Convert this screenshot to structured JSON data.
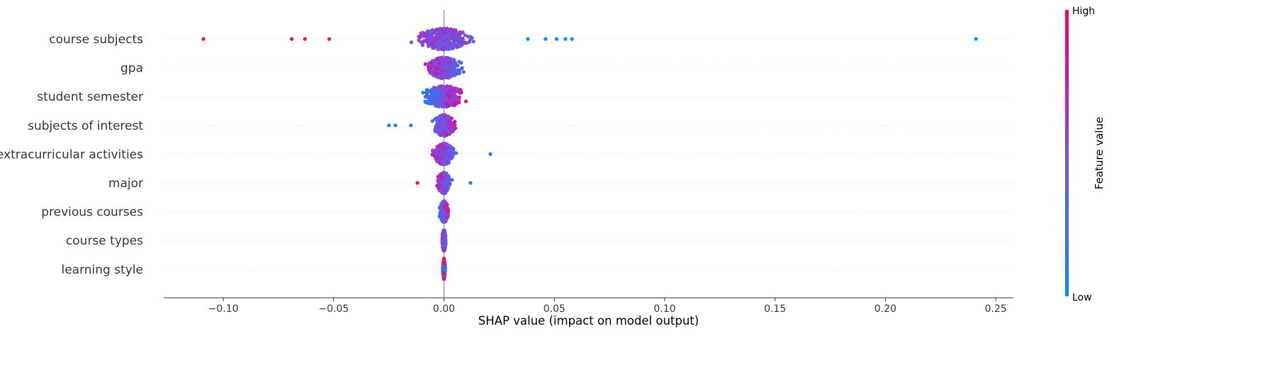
{
  "chart_data": {
    "type": "scatter",
    "subtype": "shap-beeswarm",
    "title": "",
    "xlabel": "SHAP value (impact on model output)",
    "ylabel": "",
    "xlim": [
      -0.127,
      0.258
    ],
    "xticks": [
      -0.1,
      -0.05,
      0.0,
      0.05,
      0.1,
      0.15,
      0.2,
      0.25
    ],
    "xtick_labels": [
      "−0.10",
      "−0.05",
      "0.00",
      "0.05",
      "0.10",
      "0.15",
      "0.20",
      "0.25"
    ],
    "grid": false,
    "colorbar": {
      "title": "Feature value",
      "high_label": "High",
      "low_label": "Low",
      "low_color": "#008bfb",
      "high_color": "#ff0052"
    },
    "features": [
      {
        "name": "course subjects",
        "min": -0.109,
        "max": 0.058,
        "spread": 0.012,
        "outliers": [
          {
            "value": -0.109,
            "feature_value": 0.98
          },
          {
            "value": -0.069,
            "feature_value": 0.95
          },
          {
            "value": -0.063,
            "feature_value": 0.93
          },
          {
            "value": -0.052,
            "feature_value": 0.9
          },
          {
            "value": 0.038,
            "feature_value": 0.05
          },
          {
            "value": 0.046,
            "feature_value": 0.03
          },
          {
            "value": 0.051,
            "feature_value": 0.02
          },
          {
            "value": 0.055,
            "feature_value": 0.02
          },
          {
            "value": 0.058,
            "feature_value": 0.01
          },
          {
            "value": 0.241,
            "feature_value": 0.0
          }
        ],
        "direction": "neg"
      },
      {
        "name": "gpa",
        "min": -0.022,
        "max": 0.022,
        "spread": 0.008,
        "outliers": [],
        "direction": "neg"
      },
      {
        "name": "student semester",
        "min": -0.014,
        "max": 0.013,
        "spread": 0.01,
        "outliers": [],
        "direction": "pos"
      },
      {
        "name": "subjects of interest",
        "min": -0.015,
        "max": 0.011,
        "spread": 0.005,
        "outliers": [
          {
            "value": -0.025,
            "feature_value": 0.02
          },
          {
            "value": -0.022,
            "feature_value": 0.03
          },
          {
            "value": -0.015,
            "feature_value": 0.05
          }
        ],
        "direction": "pos"
      },
      {
        "name": "extracurricular activities",
        "min": -0.014,
        "max": 0.015,
        "spread": 0.005,
        "outliers": [
          {
            "value": 0.021,
            "feature_value": 0.03
          }
        ],
        "direction": "neg"
      },
      {
        "name": "major",
        "min": -0.009,
        "max": 0.01,
        "spread": 0.003,
        "outliers": [
          {
            "value": -0.012,
            "feature_value": 0.95
          },
          {
            "value": 0.012,
            "feature_value": 0.03
          }
        ],
        "direction": "neg"
      },
      {
        "name": "previous courses",
        "min": -0.004,
        "max": 0.004,
        "spread": 0.002,
        "outliers": [],
        "direction": "pos"
      },
      {
        "name": "course types",
        "min": -0.001,
        "max": 0.003,
        "spread": 0.0008,
        "outliers": [],
        "direction": "neg"
      },
      {
        "name": "learning style",
        "min": -0.0005,
        "max": 0.0005,
        "spread": 0.0003,
        "outliers": [],
        "direction": "mixed"
      }
    ]
  }
}
